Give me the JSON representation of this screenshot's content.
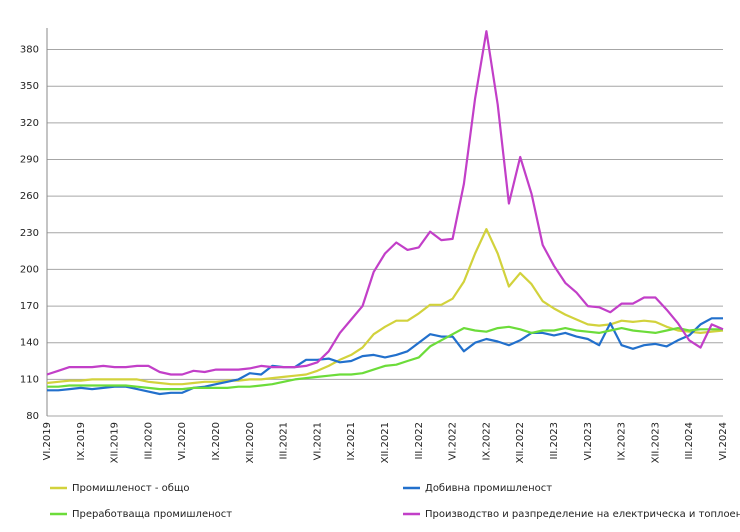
{
  "chart_data": {
    "type": "line",
    "categories": [
      "VI.2019",
      null,
      null,
      "IX.2019",
      null,
      null,
      "XII.2019",
      null,
      null,
      "III.2020",
      null,
      null,
      "VI.2020",
      null,
      null,
      "IX.2020",
      null,
      null,
      "XII.2020",
      null,
      null,
      "III.2021",
      null,
      null,
      "VI.2021",
      null,
      null,
      "IX.2021",
      null,
      null,
      "XII.2021",
      null,
      null,
      "III.2022",
      null,
      null,
      "VI.2022",
      null,
      null,
      "IX.2022",
      null,
      null,
      "XII.2022",
      null,
      null,
      "III.2023",
      null,
      null,
      "VI.2023",
      null,
      null,
      "IX.2023",
      null,
      null,
      "XII.2023",
      null,
      null,
      "III.2024",
      null,
      null,
      "VI.2024"
    ],
    "series": [
      {
        "name": "Промишленост - общо",
        "color": "#d2d23c",
        "values": [
          107,
          108,
          109,
          109,
          110,
          110,
          110,
          110,
          110,
          108,
          107,
          106,
          106,
          107,
          108,
          108,
          109,
          109,
          110,
          110,
          111,
          112,
          113,
          114,
          117,
          121,
          126,
          130,
          136,
          147,
          153,
          158,
          158,
          164,
          171,
          171,
          176,
          190,
          213,
          233,
          213,
          186,
          197,
          188,
          174,
          168,
          163,
          159,
          155,
          154,
          155,
          158,
          157,
          158,
          157,
          153,
          150,
          149,
          148,
          149,
          150
        ]
      },
      {
        "name": "Добивна промишленост",
        "color": "#2270cc",
        "values": [
          101,
          101,
          102,
          103,
          102,
          103,
          104,
          104,
          102,
          100,
          98,
          99,
          99,
          103,
          104,
          106,
          108,
          110,
          115,
          114,
          121,
          120,
          120,
          126,
          126,
          127,
          124,
          125,
          129,
          130,
          128,
          130,
          133,
          140,
          147,
          145,
          145,
          133,
          140,
          143,
          141,
          138,
          142,
          148,
          148,
          146,
          148,
          145,
          143,
          138,
          156,
          138,
          135,
          138,
          139,
          137,
          142,
          146,
          155,
          160,
          160
        ]
      },
      {
        "name": "Преработваща промишленост",
        "color": "#6cdc3a",
        "values": [
          104,
          104,
          105,
          105,
          105,
          105,
          105,
          105,
          104,
          103,
          102,
          102,
          102,
          103,
          103,
          103,
          103,
          104,
          104,
          105,
          106,
          108,
          110,
          111,
          112,
          113,
          114,
          114,
          115,
          118,
          121,
          122,
          125,
          128,
          137,
          142,
          147,
          152,
          150,
          149,
          152,
          153,
          151,
          148,
          150,
          150,
          152,
          150,
          149,
          148,
          150,
          152,
          150,
          149,
          148,
          150,
          152,
          150,
          151,
          151,
          151
        ]
      },
      {
        "name": "Производство и разпределение на електрическа и топлоенергия и газ",
        "color": "#c23fc8",
        "values": [
          114,
          117,
          120,
          120,
          120,
          121,
          120,
          120,
          121,
          121,
          116,
          114,
          114,
          117,
          116,
          118,
          118,
          118,
          119,
          121,
          120,
          120,
          120,
          121,
          124,
          133,
          148,
          159,
          170,
          198,
          213,
          222,
          216,
          218,
          231,
          224,
          225,
          270,
          340,
          395,
          335,
          254,
          292,
          262,
          220,
          203,
          189,
          181,
          170,
          169,
          165,
          172,
          172,
          177,
          177,
          167,
          156,
          142,
          136,
          155,
          151
        ]
      }
    ],
    "ylim": [
      80,
      396
    ],
    "yticks": [
      80,
      110,
      140,
      170,
      200,
      230,
      260,
      290,
      320,
      350,
      380
    ],
    "grid": true
  }
}
